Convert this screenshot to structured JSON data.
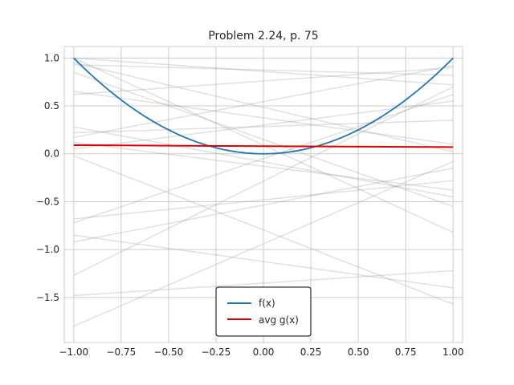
{
  "chart_data": {
    "type": "line",
    "title": "Problem 2.24, p. 75",
    "xlabel": "",
    "ylabel": "",
    "xlim": [
      -1.05,
      1.05
    ],
    "ylim": [
      -1.97,
      1.12
    ],
    "grid": true,
    "legend_position": "lower-center",
    "x_ticks": [
      -1.0,
      -0.75,
      -0.5,
      -0.25,
      0.0,
      0.25,
      0.5,
      0.75,
      1.0
    ],
    "x_tick_labels": [
      "−1.00",
      "−0.75",
      "−0.50",
      "−0.25",
      "0.00",
      "0.25",
      "0.50",
      "0.75",
      "1.00"
    ],
    "y_ticks": [
      -1.5,
      -1.0,
      -0.5,
      0.0,
      0.5,
      1.0
    ],
    "y_tick_labels": [
      "−1.5",
      "−1.0",
      "−0.5",
      "0.0",
      "0.5",
      "1.0"
    ],
    "series": [
      {
        "name": "f(x)",
        "color": "#1f77b4",
        "function": "x^2",
        "x_range": [
          -1,
          1
        ]
      },
      {
        "name": "avg g(x)",
        "color": "#e00000",
        "x": [
          -1,
          1
        ],
        "y": [
          0.09,
          0.07
        ]
      }
    ],
    "background_lines": {
      "color": "#999999",
      "opacity": 0.3,
      "segments": [
        [
          -1.0,
          1.0
        ],
        [
          -1.0,
          0.95
        ],
        [
          -1.0,
          0.93
        ],
        [
          -1.0,
          0.85
        ],
        [
          -1.0,
          0.65
        ],
        [
          -1.0,
          0.62
        ],
        [
          -1.0,
          0.28
        ],
        [
          -1.0,
          0.22
        ],
        [
          -1.0,
          0.17
        ],
        [
          -1.0,
          0.12
        ],
        [
          -1.0,
          0.05
        ],
        [
          -1.0,
          -0.02
        ],
        [
          -1.0,
          -0.68
        ],
        [
          -1.0,
          -0.72
        ],
        [
          -1.0,
          -0.85
        ],
        [
          -1.0,
          -0.92
        ],
        [
          -1.0,
          -1.27
        ],
        [
          -1.0,
          -1.48
        ],
        [
          -1.0,
          -1.8
        ],
        [
          1.0,
          -1.57
        ],
        [
          1.0,
          -1.4
        ],
        [
          1.0,
          -1.22
        ],
        [
          1.0,
          -0.82
        ],
        [
          1.0,
          -0.55
        ],
        [
          1.0,
          -0.45
        ],
        [
          1.0,
          -0.38
        ],
        [
          1.0,
          -0.28
        ],
        [
          1.0,
          -0.15
        ],
        [
          1.0,
          -0.08
        ],
        [
          1.0,
          0.02
        ],
        [
          1.0,
          0.1
        ],
        [
          1.0,
          0.35
        ],
        [
          1.0,
          0.55
        ],
        [
          1.0,
          0.62
        ],
        [
          1.0,
          0.7
        ],
        [
          1.0,
          0.72
        ],
        [
          1.0,
          0.82
        ],
        [
          1.0,
          0.9
        ],
        [
          1.0,
          0.92
        ]
      ]
    }
  },
  "legend": {
    "items": [
      {
        "label": "f(x)",
        "color": "#1f77b4"
      },
      {
        "label": "avg g(x)",
        "color": "#e00000"
      }
    ]
  }
}
